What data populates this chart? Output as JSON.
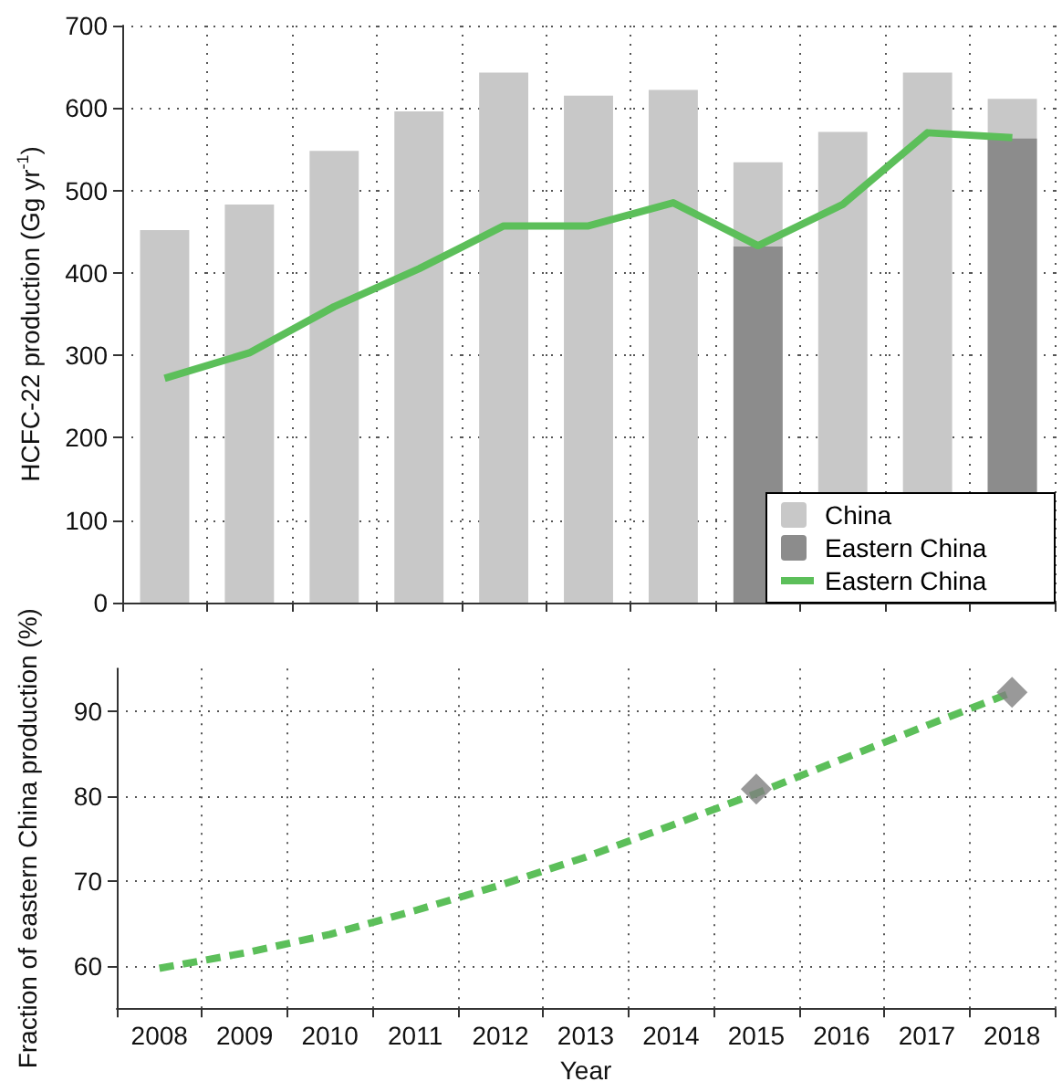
{
  "chart_data": [
    {
      "type": "bar",
      "ylabel": "HCFC-22 production (Gg yr$^{-1}$)",
      "categories": [
        "2008",
        "2009",
        "2010",
        "2011",
        "2012",
        "2013",
        "2014",
        "2015",
        "2016",
        "2017",
        "2018"
      ],
      "series": [
        {
          "name": "China",
          "color": "#c8c8c8",
          "values": [
            452,
            483,
            548,
            596,
            643,
            615,
            622,
            534,
            571,
            643,
            611
          ]
        },
        {
          "name": "Eastern China",
          "color": "#8c8c8c",
          "values": [
            null,
            null,
            null,
            null,
            null,
            null,
            null,
            432,
            null,
            null,
            563
          ]
        },
        {
          "name": "Eastern China",
          "type": "line",
          "color": "#5cbf5a",
          "values": [
            272,
            303,
            359,
            405,
            457,
            457,
            485,
            433,
            483,
            570,
            564
          ]
        }
      ],
      "ylim": [
        0,
        700
      ],
      "yticks": [
        0,
        100,
        200,
        300,
        400,
        500,
        600,
        700
      ],
      "grid": true,
      "legend": "bottom right",
      "tick_labels": "y"
    },
    {
      "type": "line",
      "xlabel": "Year",
      "ylabel": "Fraction of eastern China production (%)",
      "categories": [
        "2008",
        "2009",
        "2010",
        "2011",
        "2012",
        "2013",
        "2014",
        "2015",
        "2016",
        "2017",
        "2018"
      ],
      "series": [
        {
          "color": "#5cbf5a",
          "line_style": "dashed",
          "values": [
            59.7,
            61.5,
            63.7,
            66.5,
            69.5,
            72.8,
            76.5,
            80.3,
            84.3,
            88.3,
            92.2
          ]
        },
        {
          "type": "scatter",
          "marker": "diamond",
          "color": "#7f7f7f",
          "values": [
            null,
            null,
            null,
            null,
            null,
            null,
            null,
            80.8,
            null,
            null,
            92.2
          ]
        }
      ],
      "ylim": [
        55,
        95
      ],
      "yticks": [
        60,
        70,
        80,
        90
      ],
      "grid": true,
      "legend": false
    }
  ]
}
